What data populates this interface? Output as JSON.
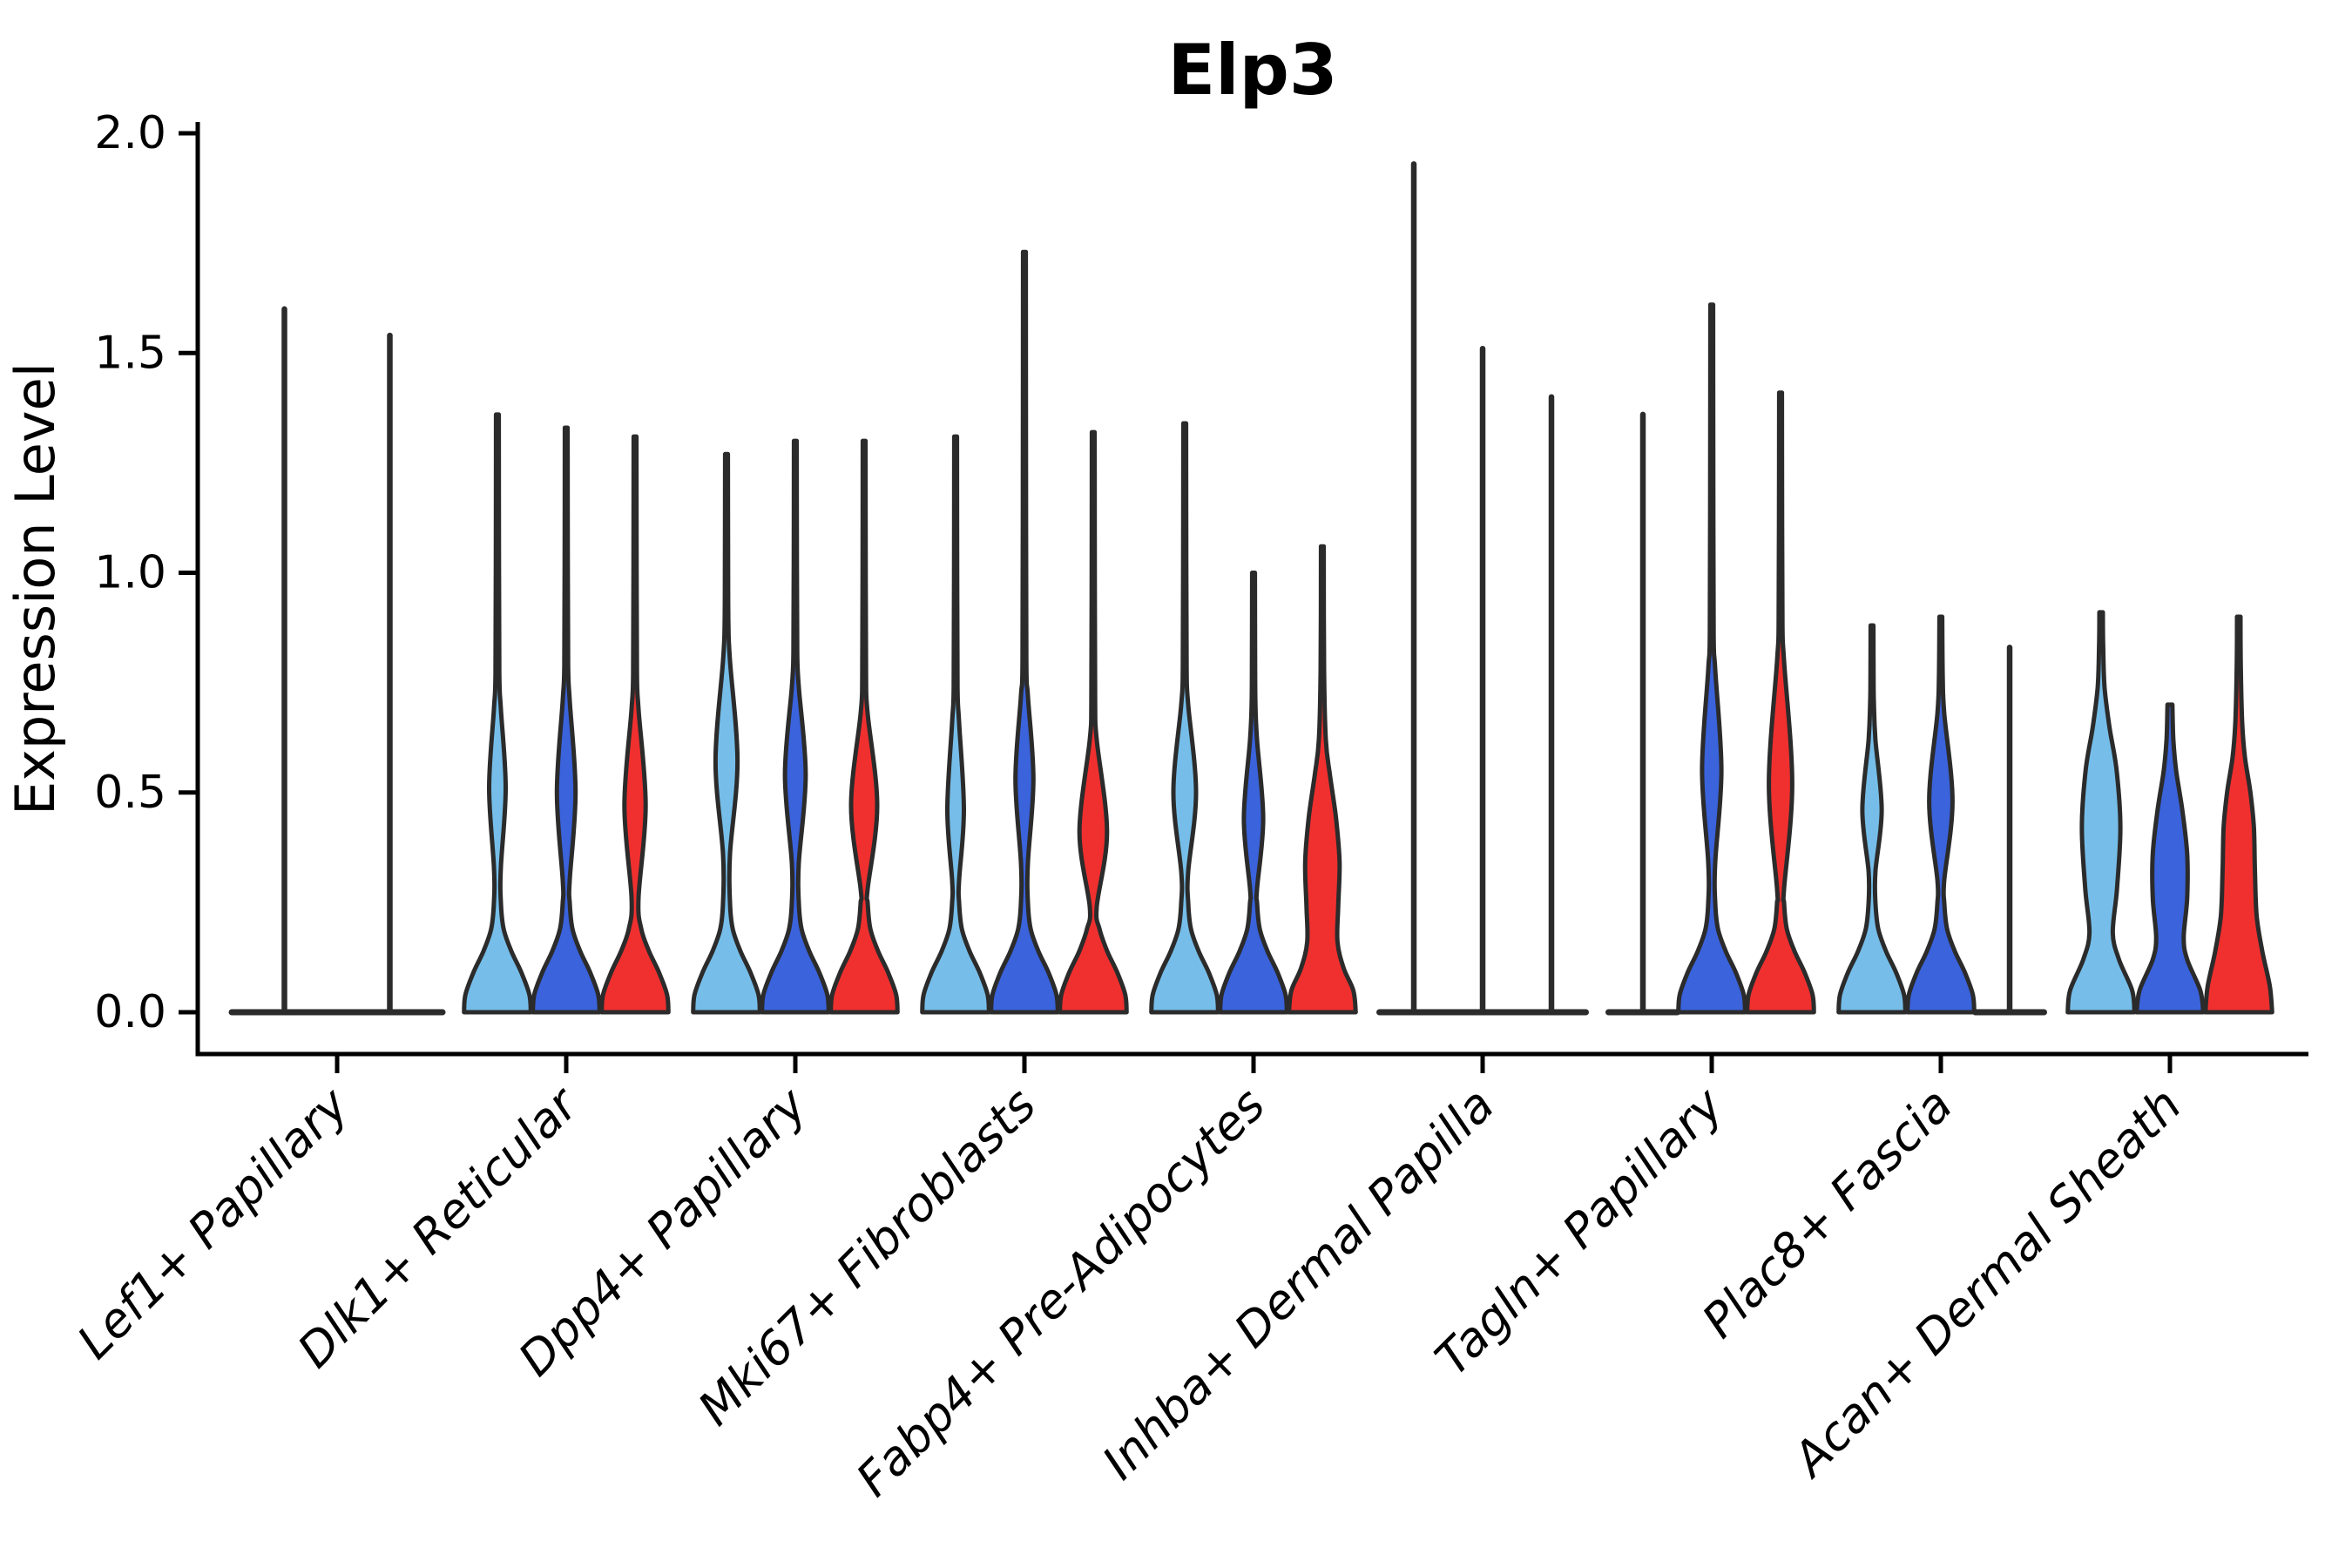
{
  "title": "Elp3",
  "chart_data": {
    "type": "violin",
    "title": "Elp3",
    "ylabel": "Expression Level",
    "xlabel": "",
    "ylim": [
      0,
      2
    ],
    "yticks": [
      "0.0",
      "0.5",
      "1.0",
      "1.5",
      "2.0"
    ],
    "ytick_values": [
      0,
      0.5,
      1.0,
      1.5,
      2.0
    ],
    "grid": false,
    "legend_position": "none",
    "outline_color": "#2b2b2b",
    "axis_color": "#000000",
    "condition_colors": {
      "light_blue": "#76BEE9",
      "dark_blue": "#3A63DC",
      "red": "#F0302F"
    },
    "categories": [
      "Lef1+ Papillary",
      "Dlk1+ Reticular",
      "Dpp4+ Papillary",
      "Mki67+ Fibroblasts",
      "Fabp4+ Pre-Adipocytes",
      "Inhba+ Dermal Papilla",
      "Tagln+ Papillary",
      "Plac8+ Fascia",
      "Acan+ Dermal Sheath"
    ],
    "groups": [
      {
        "category": "Lef1+ Papillary",
        "violins": [
          {
            "color_key": null,
            "max": 1.6,
            "collapsed": true
          },
          {
            "color_key": null,
            "max": 1.54,
            "collapsed": true
          }
        ]
      },
      {
        "category": "Dlk1+ Reticular",
        "violins": [
          {
            "color_key": "light_blue",
            "max": 1.36,
            "collapsed": false,
            "bulge": {
              "lo": 0.33,
              "peak": 0.51,
              "hi": 0.69,
              "width": 0.24
            }
          },
          {
            "color_key": "dark_blue",
            "max": 1.33,
            "collapsed": false,
            "bulge": {
              "lo": 0.3,
              "peak": 0.5,
              "hi": 0.71,
              "width": 0.27
            }
          },
          {
            "color_key": "red",
            "max": 1.31,
            "collapsed": false,
            "bulge": {
              "lo": 0.26,
              "peak": 0.47,
              "hi": 0.69,
              "width": 0.31
            }
          }
        ]
      },
      {
        "category": "Dpp4+ Papillary",
        "violins": [
          {
            "color_key": "light_blue",
            "max": 1.27,
            "collapsed": false,
            "bulge": {
              "lo": 0.36,
              "peak": 0.57,
              "hi": 0.8,
              "width": 0.32
            }
          },
          {
            "color_key": "dark_blue",
            "max": 1.3,
            "collapsed": false,
            "bulge": {
              "lo": 0.34,
              "peak": 0.54,
              "hi": 0.74,
              "width": 0.3
            }
          },
          {
            "color_key": "red",
            "max": 1.3,
            "collapsed": false,
            "bulge": {
              "lo": 0.28,
              "peak": 0.47,
              "hi": 0.68,
              "width": 0.38
            }
          }
        ]
      },
      {
        "category": "Mki67+ Fibroblasts",
        "violins": [
          {
            "color_key": "light_blue",
            "max": 1.31,
            "collapsed": false,
            "bulge": {
              "lo": 0.3,
              "peak": 0.46,
              "hi": 0.66,
              "width": 0.24
            }
          },
          {
            "color_key": "dark_blue",
            "max": 1.73,
            "collapsed": false,
            "bulge": {
              "lo": 0.34,
              "peak": 0.53,
              "hi": 0.72,
              "width": 0.26
            }
          },
          {
            "color_key": "red",
            "max": 1.32,
            "collapsed": false,
            "bulge": {
              "lo": 0.24,
              "peak": 0.41,
              "hi": 0.62,
              "width": 0.4
            }
          }
        ]
      },
      {
        "category": "Fabp4+ Pre-Adipocytes",
        "violins": [
          {
            "color_key": "light_blue",
            "max": 1.34,
            "collapsed": false,
            "bulge": {
              "lo": 0.32,
              "peak": 0.5,
              "hi": 0.7,
              "width": 0.33
            }
          },
          {
            "color_key": "dark_blue",
            "max": 1.0,
            "collapsed": false,
            "bulge": {
              "lo": 0.28,
              "peak": 0.44,
              "hi": 0.62,
              "width": 0.28
            }
          },
          {
            "color_key": "red",
            "max": 1.06,
            "collapsed": false,
            "profile": [
              [
                0,
                0.97
              ],
              [
                0.05,
                0.9
              ],
              [
                0.1,
                0.62
              ],
              [
                0.16,
                0.44
              ],
              [
                0.24,
                0.46
              ],
              [
                0.34,
                0.5
              ],
              [
                0.44,
                0.4
              ],
              [
                0.54,
                0.22
              ],
              [
                0.62,
                0.1
              ],
              [
                0.78,
                0.05
              ],
              [
                1.06,
                0.04
              ]
            ]
          }
        ]
      },
      {
        "category": "Inhba+ Dermal Papilla",
        "violins": [
          {
            "color_key": "light_blue",
            "max": 1.93,
            "collapsed": true
          },
          {
            "color_key": "dark_blue",
            "max": 1.51,
            "collapsed": true
          },
          {
            "color_key": "red",
            "max": 1.4,
            "collapsed": true
          }
        ]
      },
      {
        "category": "Tagln+ Papillary",
        "violins": [
          {
            "color_key": "light_blue",
            "max": 1.36,
            "collapsed": true
          },
          {
            "color_key": "dark_blue",
            "max": 1.61,
            "collapsed": false,
            "bulge": {
              "lo": 0.34,
              "peak": 0.55,
              "hi": 0.78,
              "width": 0.28
            }
          },
          {
            "color_key": "red",
            "max": 1.41,
            "collapsed": false,
            "bulge": {
              "lo": 0.28,
              "peak": 0.52,
              "hi": 0.8,
              "width": 0.34
            }
          }
        ]
      },
      {
        "category": "Plac8+ Fascia",
        "violins": [
          {
            "color_key": "light_blue",
            "max": 0.88,
            "collapsed": false,
            "bulge": {
              "lo": 0.32,
              "peak": 0.46,
              "hi": 0.62,
              "width": 0.28
            }
          },
          {
            "color_key": "dark_blue",
            "max": 0.9,
            "collapsed": false,
            "bulge": {
              "lo": 0.3,
              "peak": 0.48,
              "hi": 0.68,
              "width": 0.34
            }
          },
          {
            "color_key": "red",
            "max": 0.83,
            "collapsed": true
          }
        ]
      },
      {
        "category": "Acan+ Dermal Sheath",
        "violins": [
          {
            "color_key": "light_blue",
            "max": 0.91,
            "collapsed": false,
            "profile": [
              [
                0,
                0.97
              ],
              [
                0.05,
                0.9
              ],
              [
                0.12,
                0.52
              ],
              [
                0.18,
                0.34
              ],
              [
                0.28,
                0.46
              ],
              [
                0.42,
                0.56
              ],
              [
                0.55,
                0.45
              ],
              [
                0.65,
                0.24
              ],
              [
                0.74,
                0.1
              ],
              [
                0.83,
                0.06
              ],
              [
                0.91,
                0.05
              ]
            ]
          },
          {
            "color_key": "dark_blue",
            "max": 0.7,
            "collapsed": false,
            "profile": [
              [
                0,
                0.97
              ],
              [
                0.05,
                0.88
              ],
              [
                0.12,
                0.5
              ],
              [
                0.17,
                0.4
              ],
              [
                0.26,
                0.5
              ],
              [
                0.36,
                0.5
              ],
              [
                0.46,
                0.36
              ],
              [
                0.55,
                0.18
              ],
              [
                0.62,
                0.1
              ],
              [
                0.7,
                0.07
              ]
            ]
          },
          {
            "color_key": "red",
            "max": 0.9,
            "collapsed": false,
            "profile": [
              [
                0,
                0.97
              ],
              [
                0.06,
                0.9
              ],
              [
                0.14,
                0.68
              ],
              [
                0.22,
                0.52
              ],
              [
                0.32,
                0.47
              ],
              [
                0.42,
                0.44
              ],
              [
                0.5,
                0.34
              ],
              [
                0.58,
                0.18
              ],
              [
                0.66,
                0.1
              ],
              [
                0.78,
                0.06
              ],
              [
                0.9,
                0.05
              ]
            ]
          }
        ]
      }
    ]
  }
}
